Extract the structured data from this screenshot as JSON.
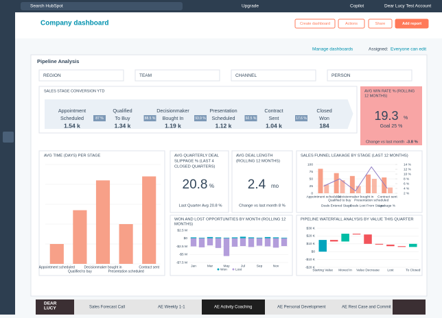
{
  "topbar": {
    "search": "Search HubSpot",
    "upgrade": "Upgrade",
    "copilot": "Copilot",
    "account": "Dear Lucy Test Account"
  },
  "header": {
    "title": "Company dashboard",
    "buttons": [
      "Create dashboard",
      "Actions",
      "Share",
      "Add report"
    ],
    "manage": "Manage dashboards",
    "assigned_label": "Assigned:",
    "assigned_value": "Everyone can edit"
  },
  "section": {
    "title": "Pipeline Analysis",
    "filters": [
      "REGION",
      "TEAM",
      "CHANNEL",
      "PERSON"
    ]
  },
  "funnel": {
    "title": "SALES STAGE CONVERSION YTD",
    "stages": [
      {
        "name": [
          "Appointment",
          "Scheduled"
        ],
        "value": "1.54 k"
      },
      {
        "name": [
          "Qualified",
          "To Buy"
        ],
        "value": "1.34 k"
      },
      {
        "name": [
          "Decisionmaker",
          "Bought In"
        ],
        "value": "1.19 k"
      },
      {
        "name": [
          "Presentation",
          "Scheduled"
        ],
        "value": "1.12 k"
      },
      {
        "name": [
          "Contract",
          "Sent"
        ],
        "value": "1.04 k"
      },
      {
        "name": [
          "Closed",
          "Won"
        ],
        "value": "184"
      }
    ],
    "rates": [
      "87 %",
      "88.5 %",
      "93.9 %",
      "92.5 %",
      "17.6 %"
    ]
  },
  "win_rate": {
    "title": [
      "AVG WIN RATE % (ROLLING",
      "12 MONTHS)"
    ],
    "value": "19.3",
    "unit": "%",
    "goal": "Goal 25 %",
    "change_label": "Change vs last month",
    "change": "-3.8 %"
  },
  "avg_time": {
    "type": "bar",
    "title": "AVG TIME (DAYS) PER STAGE",
    "categories": [
      "Appointment scheduled",
      "Qualified to buy",
      "Decisionmaker bought in",
      "Presentation scheduled",
      "Contract sent"
    ],
    "values": [
      5,
      13.5,
      21,
      10,
      22
    ],
    "ylim": [
      0,
      25
    ],
    "yticks": [
      0,
      5,
      10,
      15,
      20,
      25
    ],
    "color": "#f7a088"
  },
  "slippage": {
    "title": [
      "AVG QUARTERLY DEAL",
      "SLIPPAGE % (LAST 4",
      "CLOSED QUARTERS)"
    ],
    "value": "20.8",
    "unit": "%",
    "sub": "Last Quarter Avg 20.8 %"
  },
  "deal_length": {
    "title": [
      "AVG DEAL LENGTH",
      "(ROLLING 12 MONTHS)"
    ],
    "value": "2.4",
    "unit": "mo",
    "sub": "Change vs last month 8 %"
  },
  "leakage": {
    "type": "bar",
    "title": "SALES FUNNEL LEAKAGE BY STAGE (LAST 12 MONTHS)",
    "categories": [
      "Appointment scheduled",
      "Qualified to buy",
      "Decisionmaker bought in",
      "Presentation scheduled",
      "Contract sent"
    ],
    "series": [
      {
        "name": "Deals Entered Stage",
        "color": "#f7a088",
        "values": [
          85,
          70,
          60,
          65,
          55
        ]
      },
      {
        "name": "Deals Lost From Stage",
        "color": "#f7a088",
        "values": [
          30,
          45,
          25,
          50,
          20
        ]
      },
      {
        "name": "Leakage %",
        "color": "#8e7cc3",
        "axis": "y2",
        "values": [
          5,
          8,
          3,
          13,
          4
        ]
      }
    ],
    "ylim": [
      0,
      100
    ],
    "yticks": [
      0,
      25,
      50,
      75,
      100
    ],
    "y2lim": [
      2,
      14
    ],
    "y2ticks": [
      {
        "value": 2,
        "label": "2 %"
      },
      {
        "value": 4,
        "label": "4 %"
      },
      {
        "value": 6,
        "label": "6 %"
      },
      {
        "value": 8,
        "label": "8 %"
      },
      {
        "value": 10,
        "label": "10 %"
      },
      {
        "value": 12,
        "label": "12 %"
      },
      {
        "value": 14,
        "label": "14 %"
      }
    ]
  },
  "won_lost": {
    "type": "bar",
    "title": [
      "WON AND LOST OPPORTUNITIES BY MONTH (ROLLING 12",
      "MONTHS)"
    ],
    "x": [
      "Jan",
      null,
      "Mar",
      null,
      "May",
      null,
      "Jul",
      null,
      "Sep",
      null,
      "Nov",
      null
    ],
    "series": [
      {
        "name": "Won",
        "color": "#00a4bd",
        "values": [
          0.3,
          0.2,
          0.4,
          0.3,
          0.2,
          0.3,
          0.5,
          0.3,
          0.2,
          0.4,
          0.3,
          0.2
        ]
      },
      {
        "name": "Lost",
        "color": "#b39ddb",
        "values": [
          -2.5,
          -2.8,
          -2.2,
          -3,
          -5.5,
          -2.6,
          -2.4,
          -2.7,
          -2.3,
          -2.5,
          -2.9,
          -2.4
        ]
      }
    ],
    "ylim": [
      -7.5,
      2.5
    ],
    "yticks": [
      {
        "value": 2.5,
        "label": "$2.5 M"
      },
      {
        "value": 0,
        "label": "$0"
      },
      {
        "value": -2.5,
        "label": "-$2.5 M"
      },
      {
        "value": -5,
        "label": "-$5 M"
      },
      {
        "value": -7.5,
        "label": "-$7.5 M"
      }
    ]
  },
  "waterfall": {
    "type": "waterfall",
    "title": "PIPELINE WATERFALL ANALYSIS BY VALUE THIS QUARTER",
    "categories": [
      "Starting Value",
      null,
      "Moved In",
      null,
      "Value Decrease",
      null,
      "Lost",
      null,
      "To Closed"
    ],
    "values": [
      15,
      -2,
      10,
      -1,
      -12,
      -1,
      -2,
      -1,
      4
    ],
    "ylim": [
      -20,
      30
    ],
    "yticks": [
      {
        "value": 30,
        "label": "$30 K"
      },
      {
        "value": 20,
        "label": "$20 K"
      },
      {
        "value": 10,
        "label": "$10 K"
      },
      {
        "value": 0,
        "label": "$0"
      },
      {
        "value": -10,
        "label": "-$10 K"
      },
      {
        "value": -20,
        "label": "-$20 K"
      }
    ]
  },
  "tabs": {
    "logo": [
      "DEAR",
      "LUCY"
    ],
    "items": [
      "Sales Forecast Call",
      "AE Weekly 1-1",
      "AE Activity Coaching",
      "AE Personal Development",
      "AE Rest Case and Commit"
    ],
    "active": 2
  }
}
